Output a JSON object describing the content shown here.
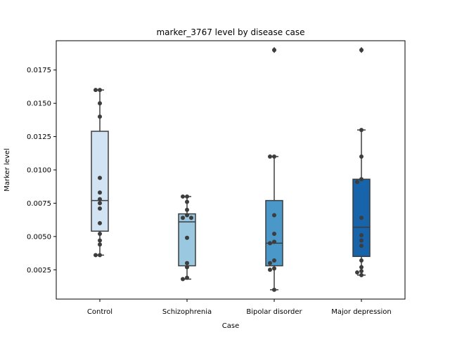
{
  "chart_data": {
    "type": "box",
    "title": "marker_3767 level by disease case",
    "xlabel": "Case",
    "ylabel": "Marker level",
    "ylim": [
      0.0003,
      0.0197
    ],
    "yticks": [
      0.0025,
      0.005,
      0.0075,
      0.01,
      0.0125,
      0.015,
      0.0175
    ],
    "ytick_labels": [
      "0.0025",
      "0.0050",
      "0.0075",
      "0.0100",
      "0.0125",
      "0.0150",
      "0.0175"
    ],
    "grid": false,
    "legend": "none",
    "categories": [
      "Control",
      "Schizophrenia",
      "Bipolar disorder",
      "Major depression"
    ],
    "colors": [
      "#d2e3f3",
      "#9ac8e0",
      "#4a97c9",
      "#1764ab"
    ],
    "box_stats": [
      {
        "whisker_low": 0.0036,
        "q1": 0.0054,
        "median": 0.0077,
        "q3": 0.0129,
        "whisker_high": 0.016,
        "outliers": []
      },
      {
        "whisker_low": 0.0018,
        "q1": 0.0028,
        "median": 0.0061,
        "q3": 0.0067,
        "whisker_high": 0.008,
        "outliers": []
      },
      {
        "whisker_low": 0.001,
        "q1": 0.0028,
        "median": 0.0045,
        "q3": 0.0077,
        "whisker_high": 0.011,
        "outliers": [
          0.019
        ]
      },
      {
        "whisker_low": 0.0021,
        "q1": 0.0035,
        "median": 0.0057,
        "q3": 0.0093,
        "whisker_high": 0.013,
        "outliers": [
          0.019
        ]
      }
    ],
    "points": [
      [
        0.016,
        0.016,
        0.015,
        0.014,
        0.0094,
        0.0083,
        0.0078,
        0.0075,
        0.0071,
        0.006,
        0.0052,
        0.0047,
        0.0044,
        0.0036,
        0.0036
      ],
      [
        0.008,
        0.008,
        0.0076,
        0.007,
        0.0066,
        0.0064,
        0.0064,
        0.0049,
        0.003,
        0.0027,
        0.0019,
        0.0018
      ],
      [
        0.019,
        0.011,
        0.011,
        0.0066,
        0.0052,
        0.0046,
        0.0045,
        0.0032,
        0.003,
        0.0026,
        0.0025,
        0.001
      ],
      [
        0.019,
        0.013,
        0.011,
        0.0093,
        0.0091,
        0.0064,
        0.0051,
        0.0047,
        0.0043,
        0.0032,
        0.0027,
        0.0024,
        0.0023,
        0.0021
      ]
    ]
  }
}
